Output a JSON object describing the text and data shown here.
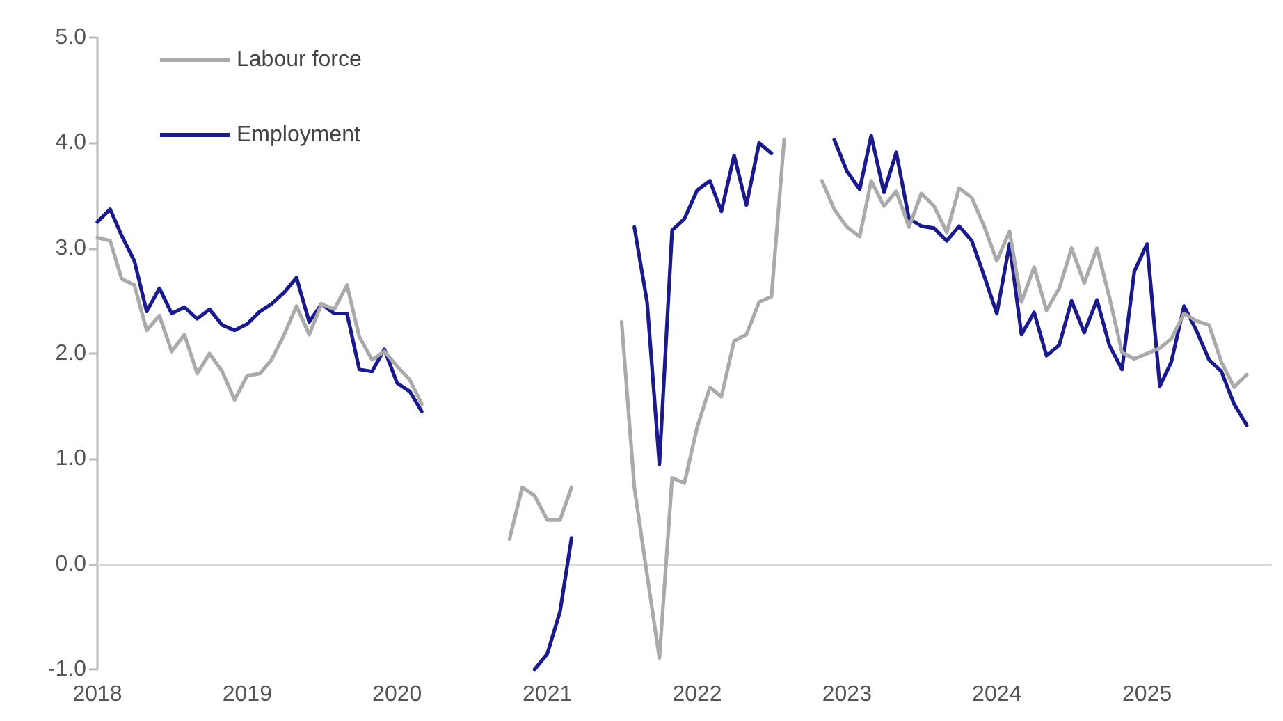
{
  "chart_data": {
    "type": "line",
    "x": [
      "2018-01",
      "2018-02",
      "2018-03",
      "2018-04",
      "2018-05",
      "2018-06",
      "2018-07",
      "2018-08",
      "2018-09",
      "2018-10",
      "2018-11",
      "2018-12",
      "2019-01",
      "2019-02",
      "2019-03",
      "2019-04",
      "2019-05",
      "2019-06",
      "2019-07",
      "2019-08",
      "2019-09",
      "2019-10",
      "2019-11",
      "2019-12",
      "2020-01",
      "2020-02",
      "2020-03",
      "2020-04",
      "2020-05",
      "2020-06",
      "2020-07",
      "2020-08",
      "2020-09",
      "2020-10",
      "2020-11",
      "2020-12",
      "2021-01",
      "2021-02",
      "2021-03",
      "2021-04",
      "2021-05",
      "2021-06",
      "2021-07",
      "2021-08",
      "2021-09",
      "2021-10",
      "2021-11",
      "2021-12",
      "2022-01",
      "2022-02",
      "2022-03",
      "2022-04",
      "2022-05",
      "2022-06",
      "2022-07",
      "2022-08",
      "2022-09",
      "2022-10",
      "2022-11",
      "2022-12",
      "2023-01",
      "2023-02",
      "2023-03",
      "2023-04",
      "2023-05",
      "2023-06",
      "2023-07",
      "2023-08",
      "2023-09",
      "2023-10",
      "2023-11",
      "2023-12",
      "2024-01",
      "2024-02",
      "2024-03",
      "2024-04",
      "2024-05",
      "2024-06",
      "2024-07",
      "2024-08",
      "2024-09",
      "2024-10",
      "2024-11",
      "2024-12",
      "2025-01",
      "2025-02",
      "2025-03",
      "2025-04",
      "2025-05",
      "2025-06",
      "2025-07",
      "2025-08",
      "2025-09"
    ],
    "series": [
      {
        "name": "Labour force",
        "color": "#aaaaaa",
        "values": [
          3.1,
          3.07,
          2.71,
          2.65,
          2.22,
          2.36,
          2.02,
          2.18,
          1.81,
          2.0,
          1.83,
          1.56,
          1.79,
          1.81,
          1.94,
          2.18,
          2.45,
          2.18,
          2.47,
          2.42,
          2.65,
          2.16,
          1.94,
          2.02,
          1.88,
          1.75,
          1.52,
          null,
          null,
          null,
          null,
          null,
          null,
          0.24,
          0.73,
          0.65,
          0.42,
          0.42,
          0.73,
          null,
          null,
          null,
          2.3,
          0.73,
          -0.1,
          -0.89,
          0.82,
          0.77,
          1.3,
          1.68,
          1.59,
          2.12,
          2.18,
          2.49,
          2.54,
          4.03,
          null,
          null,
          3.64,
          3.37,
          3.2,
          3.11,
          3.64,
          3.4,
          3.54,
          3.2,
          3.52,
          3.4,
          3.15,
          3.57,
          3.48,
          3.21,
          2.88,
          3.16,
          2.49,
          2.82,
          2.41,
          2.62,
          3.0,
          2.67,
          3.0,
          2.54,
          2.01,
          1.95,
          2.0,
          2.05,
          2.14,
          2.38,
          2.31,
          2.27,
          1.92,
          1.68,
          1.8
        ]
      },
      {
        "name": "Employment",
        "color": "#1a1a8c",
        "values": [
          3.25,
          3.37,
          3.12,
          2.88,
          2.4,
          2.62,
          2.38,
          2.44,
          2.33,
          2.42,
          2.27,
          2.22,
          2.28,
          2.4,
          2.47,
          2.58,
          2.72,
          2.3,
          2.47,
          2.38,
          2.38,
          1.85,
          1.83,
          2.04,
          1.72,
          1.64,
          1.45,
          null,
          null,
          null,
          null,
          null,
          null,
          null,
          null,
          -1.0,
          -0.85,
          -0.45,
          0.25,
          null,
          null,
          null,
          null,
          3.2,
          2.49,
          0.95,
          3.17,
          3.28,
          3.55,
          3.64,
          3.35,
          3.88,
          3.41,
          4.0,
          3.9,
          null,
          null,
          null,
          null,
          4.03,
          3.73,
          3.56,
          4.07,
          3.53,
          3.91,
          3.28,
          3.21,
          3.19,
          3.07,
          3.21,
          3.07,
          2.74,
          2.38,
          3.04,
          2.18,
          2.39,
          1.98,
          2.08,
          2.5,
          2.2,
          2.51,
          2.08,
          1.85,
          2.78,
          3.04,
          1.69,
          1.92,
          2.45,
          2.22,
          1.94,
          1.83,
          1.52,
          1.32
        ]
      }
    ],
    "xlim": [
      "2018-01",
      "2025-11"
    ],
    "xticks": [
      {
        "value": "2018-01",
        "label": "2018"
      },
      {
        "value": "2019-01",
        "label": "2019"
      },
      {
        "value": "2020-01",
        "label": "2020"
      },
      {
        "value": "2021-01",
        "label": "2021"
      },
      {
        "value": "2022-01",
        "label": "2022"
      },
      {
        "value": "2023-01",
        "label": "2023"
      },
      {
        "value": "2024-01",
        "label": "2024"
      },
      {
        "value": "2025-01",
        "label": "2025"
      }
    ],
    "ylim": [
      -1,
      5
    ],
    "yticks": [
      {
        "value": -1,
        "label": "-1.0"
      },
      {
        "value": 0,
        "label": "0.0"
      },
      {
        "value": 1,
        "label": "1.0"
      },
      {
        "value": 2,
        "label": "2.0"
      },
      {
        "value": 3,
        "label": "3.0"
      },
      {
        "value": 4,
        "label": "4.0"
      },
      {
        "value": 5,
        "label": "5.0"
      }
    ],
    "ref_lines": [
      {
        "axis": "y",
        "value": 0,
        "color": "#d9d9d9"
      }
    ],
    "grid": false,
    "legend": "top left",
    "marker": "none",
    "line_style": "solid"
  }
}
